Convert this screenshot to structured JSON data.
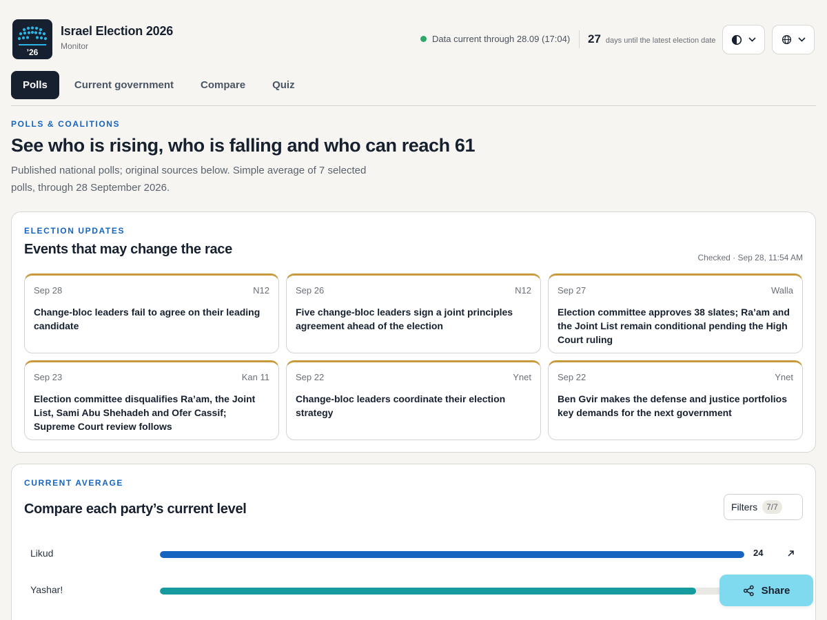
{
  "header": {
    "logo_text": "’26",
    "title": "Israel Election 2026",
    "subtitle": "Monitor",
    "status_text": "Data current through 28.09 (17:04)",
    "countdown_number": "27",
    "countdown_label": "days until the latest election date",
    "theme_icon": "contrast-icon",
    "lang_icon": "globe-icon"
  },
  "tabs": [
    {
      "label": "Polls",
      "active": true
    },
    {
      "label": "Current government",
      "active": false
    },
    {
      "label": "Compare",
      "active": false
    },
    {
      "label": "Quiz",
      "active": false
    }
  ],
  "hero": {
    "eyebrow": "POLLS & COALITIONS",
    "title": "See who is rising, who is falling and who can reach 61",
    "description": "Published national polls; original sources below. Simple average of 7 selected polls, through 28 September 2026."
  },
  "updates": {
    "eyebrow": "ELECTION UPDATES",
    "title": "Events that may change the race",
    "checked": "Checked · Sep 28, 11:54 AM",
    "cards": [
      {
        "date": "Sep 28",
        "source": "N12",
        "text": "Change-bloc leaders fail to agree on their leading candidate"
      },
      {
        "date": "Sep 26",
        "source": "N12",
        "text": "Five change-bloc leaders sign a joint principles agreement ahead of the election"
      },
      {
        "date": "Sep 27",
        "source": "Walla",
        "text": "Election committee approves 38 slates; Ra’am and the Joint List remain conditional pending the High Court ruling"
      },
      {
        "date": "Sep 23",
        "source": "Kan 11",
        "text": "Election committee disqualifies Ra’am, the Joint List, Sami Abu Shehadeh and Ofer Cassif; Supreme Court review follows"
      },
      {
        "date": "Sep 22",
        "source": "Ynet",
        "text": "Change-bloc leaders coordinate their election strategy"
      },
      {
        "date": "Sep 22",
        "source": "Ynet",
        "text": "Ben Gvir makes the defense and justice portfolios key demands for the next government"
      }
    ]
  },
  "average": {
    "eyebrow": "CURRENT AVERAGE",
    "title": "Compare each party’s current level",
    "filters_label": "Filters",
    "filters_count": "7/7",
    "parties": [
      {
        "name": "Likud",
        "value": "24",
        "fraction": 1.0,
        "color": "#1565c0"
      },
      {
        "name": "Yashar!",
        "value": "",
        "fraction": 0.917,
        "color": "#159aa0"
      }
    ]
  },
  "share": {
    "label": "Share"
  },
  "colors": {
    "accent": "#1565c0",
    "dark": "#16202e",
    "card_border_top": "#c8993a",
    "share_bg": "#7fd9ef"
  }
}
